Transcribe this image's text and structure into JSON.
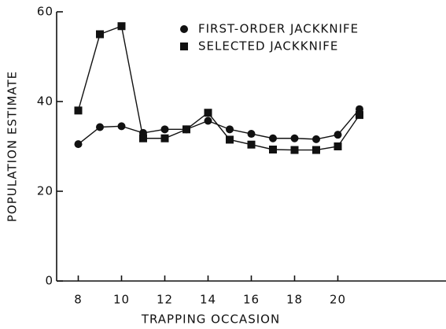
{
  "chart_data": {
    "type": "line",
    "xlabel": "TRAPPING OCCASION",
    "ylabel": "POPULATION ESTIMATE",
    "x": [
      8,
      9,
      10,
      11,
      12,
      13,
      14,
      15,
      16,
      17,
      18,
      19,
      20,
      21
    ],
    "series": [
      {
        "name": "FIRST-ORDER JACKKNIFE",
        "color": "#111111",
        "marker": "circle",
        "values": [
          30.5,
          34.3,
          34.5,
          33,
          33.8,
          33.8,
          35.7,
          33.8,
          32.8,
          31.8,
          31.8,
          31.6,
          32.6,
          38.3
        ]
      },
      {
        "name": "SELECTED JACKKNIFE",
        "color": "#111111",
        "marker": "square",
        "values": [
          38,
          55,
          56.8,
          31.8,
          31.8,
          33.8,
          37.5,
          31.5,
          30.4,
          29.3,
          29.2,
          29.2,
          30,
          37
        ]
      }
    ],
    "xlim": [
      7,
      25
    ],
    "ylim": [
      0,
      60
    ],
    "xticks": [
      8,
      10,
      12,
      14,
      16,
      18,
      20
    ],
    "yticks": [
      0,
      20,
      40,
      60
    ],
    "legend": "top"
  }
}
